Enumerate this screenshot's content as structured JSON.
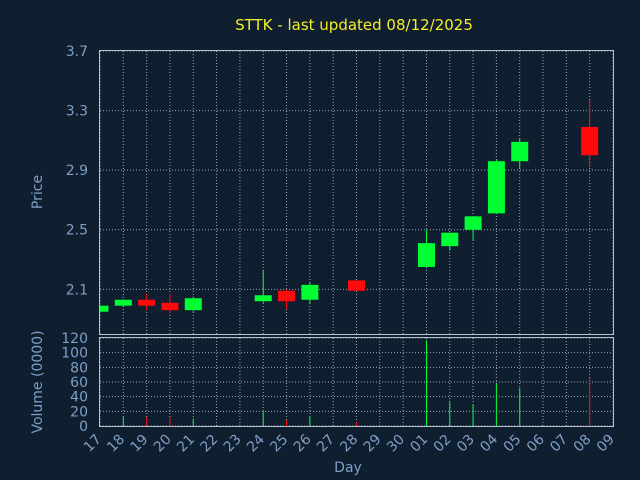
{
  "chart_data": {
    "type": "candlestick",
    "title": "STTK - last updated 08/12/2025",
    "xlabel": "Day",
    "colors": {
      "background": "#0f1f30",
      "up": "#00ff33",
      "down": "#ff0a0a",
      "text": "#7f9fc6",
      "title": "#f5ef2a",
      "grid": "#9aa8b8"
    },
    "x_ticks": [
      "17",
      "18",
      "19",
      "20",
      "21",
      "22",
      "23",
      "24",
      "25",
      "26",
      "27",
      "28",
      "29",
      "30",
      "01",
      "02",
      "03",
      "04",
      "05",
      "06",
      "07",
      "08",
      "09"
    ],
    "price_panel": {
      "ylabel": "Price",
      "ylim": [
        1.8,
        3.7
      ],
      "y_ticks": [
        2.1,
        2.5,
        2.9,
        3.3,
        3.7
      ],
      "grid": true
    },
    "volume_panel": {
      "ylabel": "Volume (0000)",
      "ylim": [
        0,
        120
      ],
      "y_ticks": [
        0,
        20,
        40,
        60,
        80,
        100,
        120
      ],
      "grid": true
    },
    "candles": [
      {
        "day": "17",
        "open": 1.95,
        "high": 1.99,
        "low": 1.94,
        "close": 1.99,
        "volume": 0
      },
      {
        "day": "18",
        "open": 1.99,
        "high": 2.03,
        "low": 1.98,
        "close": 2.03,
        "volume": 12
      },
      {
        "day": "19",
        "open": 2.03,
        "high": 2.07,
        "low": 1.96,
        "close": 1.99,
        "volume": 12
      },
      {
        "day": "20",
        "open": 2.01,
        "high": 2.07,
        "low": 1.94,
        "close": 1.96,
        "volume": 12
      },
      {
        "day": "21",
        "open": 1.96,
        "high": 2.05,
        "low": 1.95,
        "close": 2.04,
        "volume": 10
      },
      {
        "day": "24",
        "open": 2.02,
        "high": 2.23,
        "low": 2.01,
        "close": 2.06,
        "volume": 20
      },
      {
        "day": "25",
        "open": 2.09,
        "high": 2.1,
        "low": 1.97,
        "close": 2.02,
        "volume": 8
      },
      {
        "day": "26",
        "open": 2.03,
        "high": 2.15,
        "low": 2.0,
        "close": 2.13,
        "volume": 13
      },
      {
        "day": "28",
        "open": 2.16,
        "high": 2.16,
        "low": 2.09,
        "close": 2.09,
        "volume": 5
      },
      {
        "day": "01",
        "open": 2.25,
        "high": 2.5,
        "low": 2.25,
        "close": 2.41,
        "volume": 117
      },
      {
        "day": "02",
        "open": 2.39,
        "high": 2.48,
        "low": 2.36,
        "close": 2.48,
        "volume": 33
      },
      {
        "day": "03",
        "open": 2.5,
        "high": 2.59,
        "low": 2.43,
        "close": 2.59,
        "volume": 30
      },
      {
        "day": "04",
        "open": 2.61,
        "high": 2.97,
        "low": 2.61,
        "close": 2.96,
        "volume": 58
      },
      {
        "day": "05",
        "open": 2.96,
        "high": 3.11,
        "low": 2.91,
        "close": 3.09,
        "volume": 52
      },
      {
        "day": "08",
        "open": 3.19,
        "high": 3.37,
        "low": 2.92,
        "close": 3.0,
        "volume": 65
      }
    ]
  }
}
